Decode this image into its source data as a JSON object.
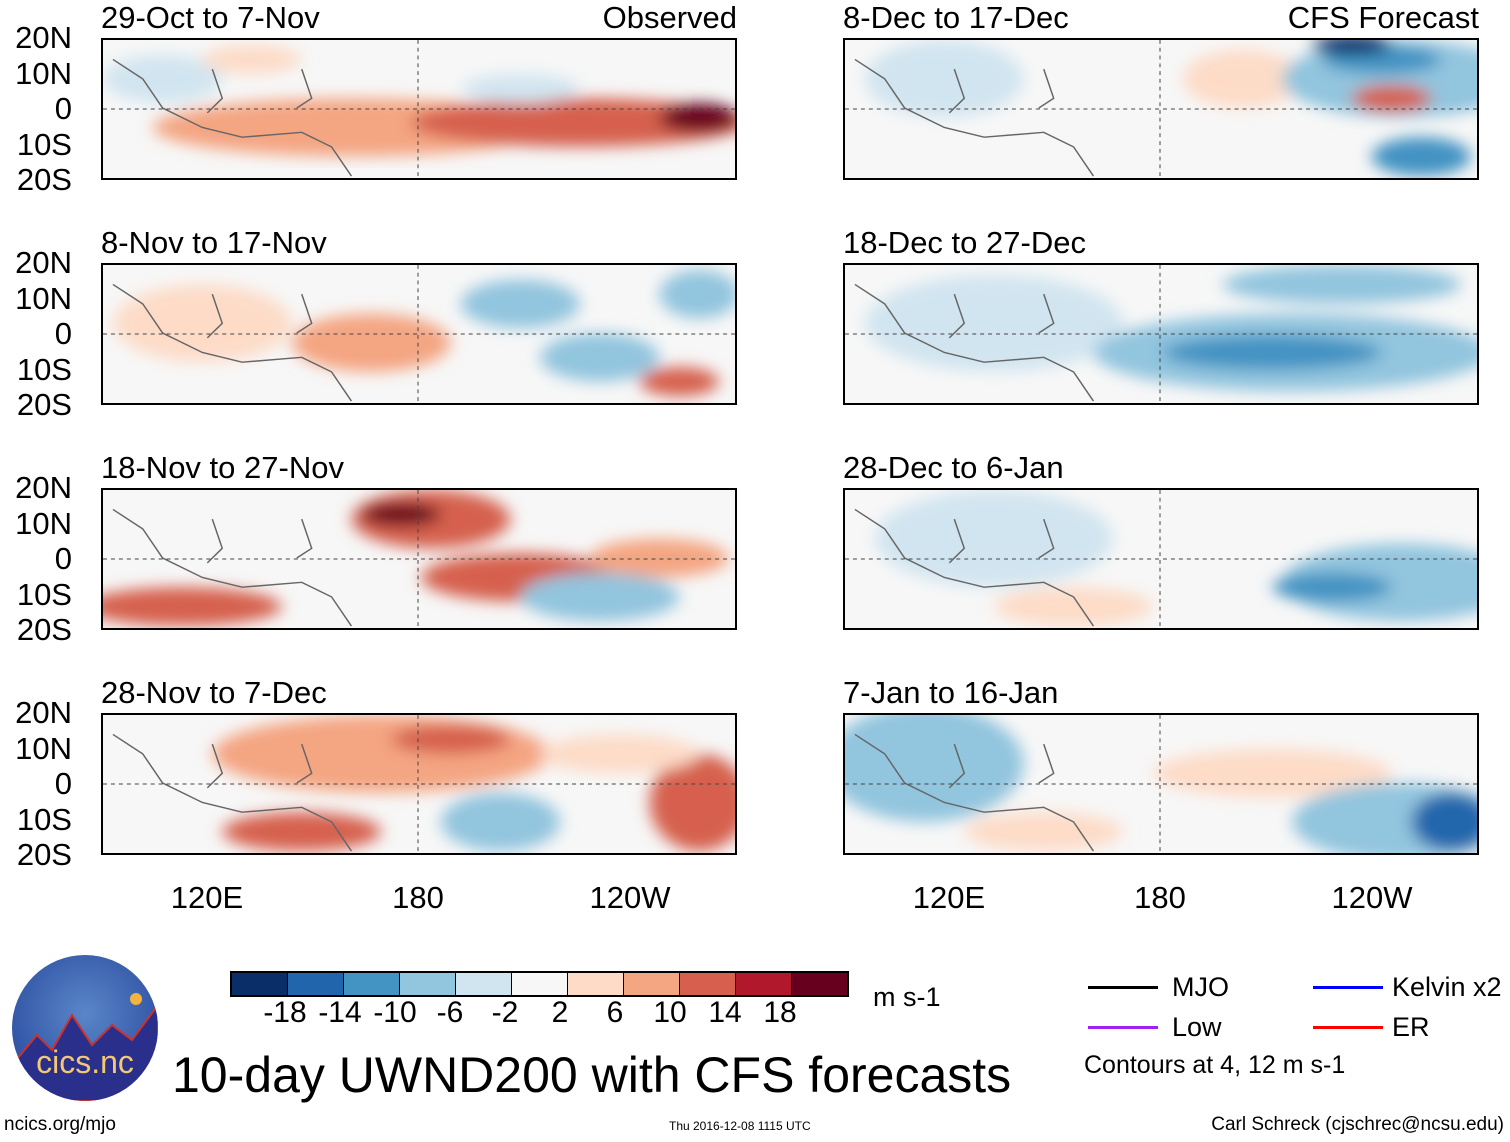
{
  "header": {
    "observed_label": "Observed",
    "forecast_label": "CFS Forecast"
  },
  "panels": [
    {
      "title": "29-Oct to 7-Nov"
    },
    {
      "title": "8-Dec to 17-Dec"
    },
    {
      "title": "8-Nov to 17-Nov"
    },
    {
      "title": "18-Dec to 27-Dec"
    },
    {
      "title": "18-Nov to 27-Nov"
    },
    {
      "title": "28-Dec to 6-Jan"
    },
    {
      "title": "28-Nov to 7-Dec"
    },
    {
      "title": "7-Jan to 16-Jan"
    }
  ],
  "lat_labels": [
    "20N",
    "10N",
    "0",
    "10S",
    "20S"
  ],
  "lon_labels": [
    "120E",
    "180",
    "120W"
  ],
  "colorbar": {
    "colors": [
      "#0a2f68",
      "#2166ac",
      "#4393c3",
      "#92c5de",
      "#d1e5f0",
      "#f7f7f7",
      "#fddbc7",
      "#f4a582",
      "#d6604d",
      "#b2182b",
      "#67001f"
    ],
    "labels": [
      "-18",
      "-14",
      "-10",
      "-6",
      "-2",
      "2",
      "6",
      "10",
      "14",
      "18"
    ],
    "units": "m s-1"
  },
  "legend": {
    "items": [
      {
        "label": "MJO",
        "color": "#000000"
      },
      {
        "label": "Kelvin x2",
        "color": "#0000ff"
      },
      {
        "label": "Low",
        "color": "#a020f0"
      },
      {
        "label": "ER",
        "color": "#ff0000"
      }
    ],
    "note": "Contours at 4, 12 m s-1"
  },
  "footer": {
    "title": "10-day UWND200 with CFS forecasts",
    "url": "ncics.org/mjo",
    "timestamp": "Thu 2016-12-08 1115 UTC",
    "credit": "Carl Schreck (cjschrec@ncsu.edu)",
    "logo_text": "cics.nc",
    "logo_ring": "Cooperative Institute for Climate and Satellites"
  }
}
